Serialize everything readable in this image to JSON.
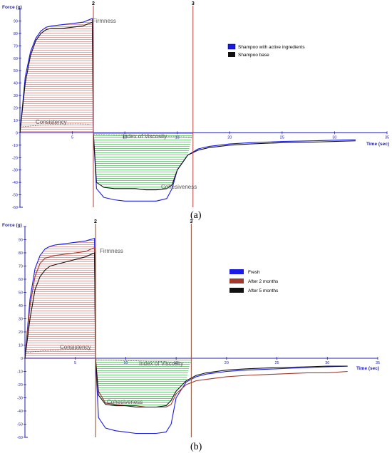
{
  "colors": {
    "blue": "#1a1ae6",
    "black": "#111111",
    "brown": "#a0392c",
    "axis": "#1f1fb0",
    "phase_marker": "#b33b3b",
    "marker_b": "#8b4a2b",
    "consistency_hatch": "#d98a8a",
    "viscosity_hatch": "#4cc25a",
    "annotation": "#555555"
  },
  "chart_data": [
    {
      "type": "line",
      "panel_label": "(a)",
      "xlabel": "Time (sec)",
      "ylabel": "Force (g)",
      "xlim": [
        0,
        35
      ],
      "ylim": [
        -60,
        100
      ],
      "xticks": [
        0,
        5,
        10,
        15,
        20,
        25,
        30,
        35
      ],
      "yticks": [
        -60,
        -50,
        -40,
        -30,
        -20,
        -10,
        0,
        10,
        20,
        30,
        40,
        50,
        60,
        70,
        80,
        90,
        100
      ],
      "phase_markers": [
        {
          "x": 7,
          "label": "2"
        },
        {
          "x": 16.5,
          "label": "3"
        }
      ],
      "annotations": [
        "Firmness",
        "Consistency",
        "Index of Viscosity",
        "Cohesiveness"
      ],
      "legend_position": "right",
      "series": [
        {
          "name": "Shampoo with active ingredients",
          "color": "#1a1ae6",
          "x": [
            0,
            0.5,
            1,
            1.5,
            2,
            2.5,
            3,
            4,
            5,
            6,
            6.9,
            7.0,
            7.3,
            8,
            9,
            10,
            11,
            12,
            13,
            14,
            14.5,
            15,
            16,
            17,
            18,
            20,
            22,
            25,
            28,
            30,
            32
          ],
          "y": [
            0,
            45,
            65,
            76,
            82,
            85,
            86,
            87,
            88,
            89,
            92,
            0,
            -45,
            -52,
            -54,
            -55,
            -55,
            -55,
            -55,
            -53,
            -45,
            -30,
            -18,
            -13,
            -11,
            -9,
            -8,
            -7,
            -6.5,
            -6,
            -5.5
          ]
        },
        {
          "name": "Shampoo base",
          "color": "#111111",
          "x": [
            0,
            0.5,
            1,
            1.5,
            2,
            2.5,
            3,
            4,
            5,
            6,
            6.9,
            7.0,
            7.3,
            8,
            9,
            10,
            11,
            12,
            13,
            14,
            14.5,
            15,
            16,
            17,
            18,
            20,
            22,
            25,
            28,
            30,
            32
          ],
          "y": [
            0,
            40,
            62,
            74,
            80,
            83,
            84,
            84,
            85,
            86,
            89,
            0,
            -40,
            -44,
            -45,
            -45,
            -45,
            -46,
            -46,
            -45,
            -42,
            -30,
            -18,
            -14,
            -12,
            -10,
            -9,
            -8,
            -7.5,
            -7,
            -6.5
          ]
        }
      ]
    },
    {
      "type": "line",
      "panel_label": "(b)",
      "xlabel": "Time (sec)",
      "ylabel": "Force (g)",
      "xlim": [
        0,
        35
      ],
      "ylim": [
        -60,
        100
      ],
      "xticks": [
        0,
        5,
        10,
        15,
        20,
        25,
        30,
        35
      ],
      "yticks": [
        -60,
        -50,
        -40,
        -30,
        -20,
        -10,
        0,
        10,
        20,
        30,
        40,
        50,
        60,
        70,
        80,
        90,
        100
      ],
      "phase_markers": [
        {
          "x": 7,
          "label": "2"
        },
        {
          "x": 16.5,
          "label": "3"
        }
      ],
      "annotations": [
        "Firmness",
        "Consistency",
        "Index of Viscosity",
        "Cohesiveness"
      ],
      "legend_position": "right",
      "series": [
        {
          "name": "Fresh",
          "color": "#1a1ae6",
          "x": [
            0,
            0.5,
            1,
            1.5,
            2,
            2.5,
            3,
            4,
            5,
            6,
            6.9,
            7.0,
            7.3,
            8,
            9,
            10,
            11,
            12,
            13,
            14,
            14.5,
            15,
            16,
            17,
            18,
            20,
            22,
            25,
            28,
            30,
            32
          ],
          "y": [
            0,
            45,
            68,
            78,
            83,
            85,
            86,
            87,
            88,
            89,
            91,
            0,
            -45,
            -53,
            -55,
            -56,
            -57,
            -57,
            -57,
            -56,
            -50,
            -30,
            -18,
            -14,
            -12,
            -10,
            -9,
            -8,
            -7,
            -6.5,
            -6
          ]
        },
        {
          "name": "After 2 months",
          "color": "#a0392c",
          "x": [
            0,
            0.5,
            1,
            1.5,
            2,
            2.5,
            3,
            4,
            5,
            6,
            6.9,
            7.0,
            7.3,
            8,
            9,
            10,
            11,
            12,
            13,
            14,
            14.5,
            15,
            16,
            17,
            18,
            20,
            22,
            25,
            28,
            30,
            32
          ],
          "y": [
            0,
            40,
            62,
            72,
            76,
            77,
            78,
            79,
            80,
            81,
            84,
            0,
            -25,
            -34,
            -35,
            -36,
            -36,
            -37,
            -37,
            -37,
            -35,
            -27,
            -20,
            -17,
            -16,
            -14,
            -13,
            -12,
            -11,
            -11,
            -10
          ]
        },
        {
          "name": "After 5 months",
          "color": "#111111",
          "x": [
            0,
            0.5,
            1,
            1.5,
            2,
            2.5,
            3,
            4,
            5,
            6,
            6.9,
            7.0,
            7.3,
            8,
            9,
            10,
            11,
            12,
            13,
            14,
            14.5,
            15,
            16,
            17,
            18,
            20,
            22,
            25,
            28,
            30,
            32
          ],
          "y": [
            0,
            30,
            52,
            62,
            67,
            70,
            71,
            73,
            75,
            77,
            80,
            0,
            -28,
            -35,
            -36,
            -36,
            -37,
            -37,
            -37,
            -36,
            -32,
            -25,
            -17,
            -13,
            -11,
            -9,
            -8,
            -7,
            -6.5,
            -6,
            -6
          ]
        }
      ]
    }
  ]
}
